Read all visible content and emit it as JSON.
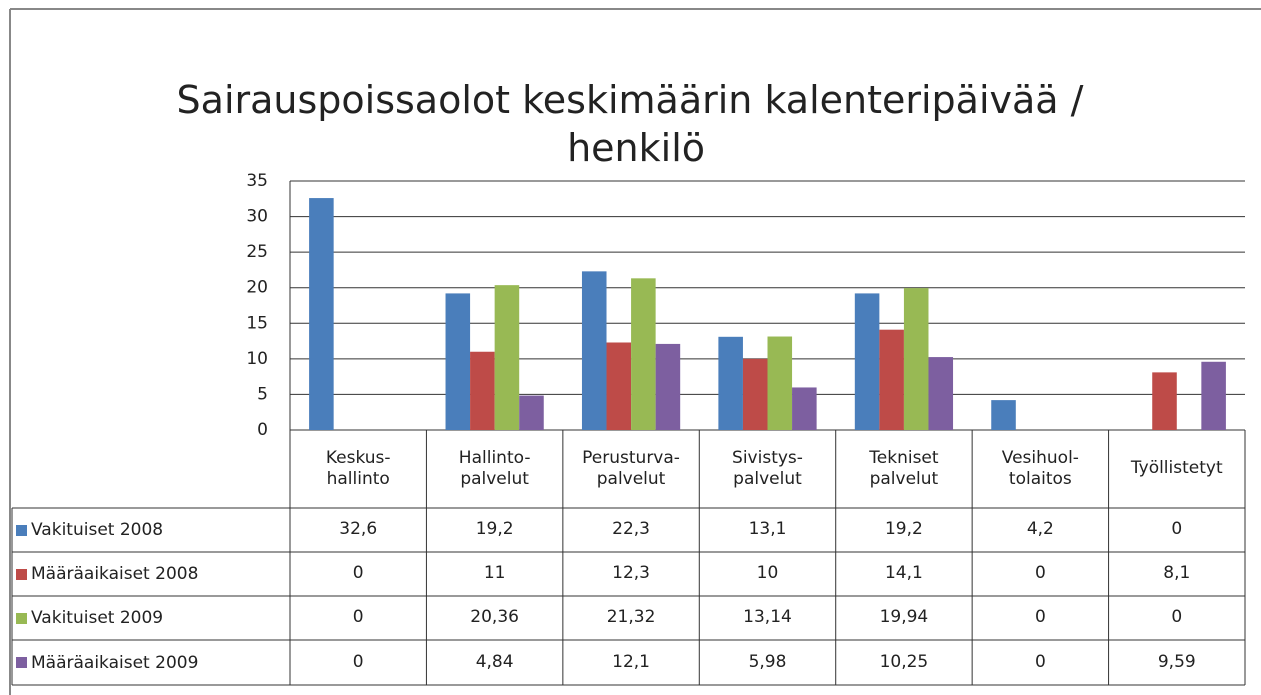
{
  "chart_data": {
    "type": "bar",
    "title": "Sairauspoissaolot keskimäärin kalenteripäivää / henkilö",
    "categories": [
      "Keskus-\nhallinto",
      "Hallinto-\npalvelut",
      "Perusturva-\npalvelut",
      "Sivistys-\npalvelut",
      "Tekniset\npalvelut",
      "Vesihuol-\ntolaitos",
      "Työllistetyt"
    ],
    "series": [
      {
        "name": "Vakituiset 2008",
        "color": "#4a7ebb",
        "values": [
          32.6,
          19.2,
          22.3,
          13.1,
          19.2,
          4.2,
          0
        ],
        "value_labels": [
          "32,6",
          "19,2",
          "22,3",
          "13,1",
          "19,2",
          "4,2",
          "0"
        ]
      },
      {
        "name": "Määräaikaiset 2008",
        "color": "#be4b48",
        "values": [
          0,
          11,
          12.3,
          10,
          14.1,
          0,
          8.1
        ],
        "value_labels": [
          "0",
          "11",
          "12,3",
          "10",
          "14,1",
          "0",
          "8,1"
        ]
      },
      {
        "name": "Vakituiset 2009",
        "color": "#98b954",
        "values": [
          0,
          20.36,
          21.32,
          13.14,
          19.94,
          0,
          0
        ],
        "value_labels": [
          "0",
          "20,36",
          "21,32",
          "13,14",
          "19,94",
          "0",
          "0"
        ]
      },
      {
        "name": "Määräaikaiset 2009",
        "color": "#7d5fa0",
        "values": [
          0,
          4.84,
          12.1,
          5.98,
          10.25,
          0,
          9.59
        ],
        "value_labels": [
          "0",
          "4,84",
          "12,1",
          "5,98",
          "10,25",
          "0",
          "9,59"
        ]
      }
    ],
    "ylim": [
      0,
      35
    ],
    "yticks": [
      0,
      5,
      10,
      15,
      20,
      25,
      30,
      35
    ],
    "grid": true
  }
}
